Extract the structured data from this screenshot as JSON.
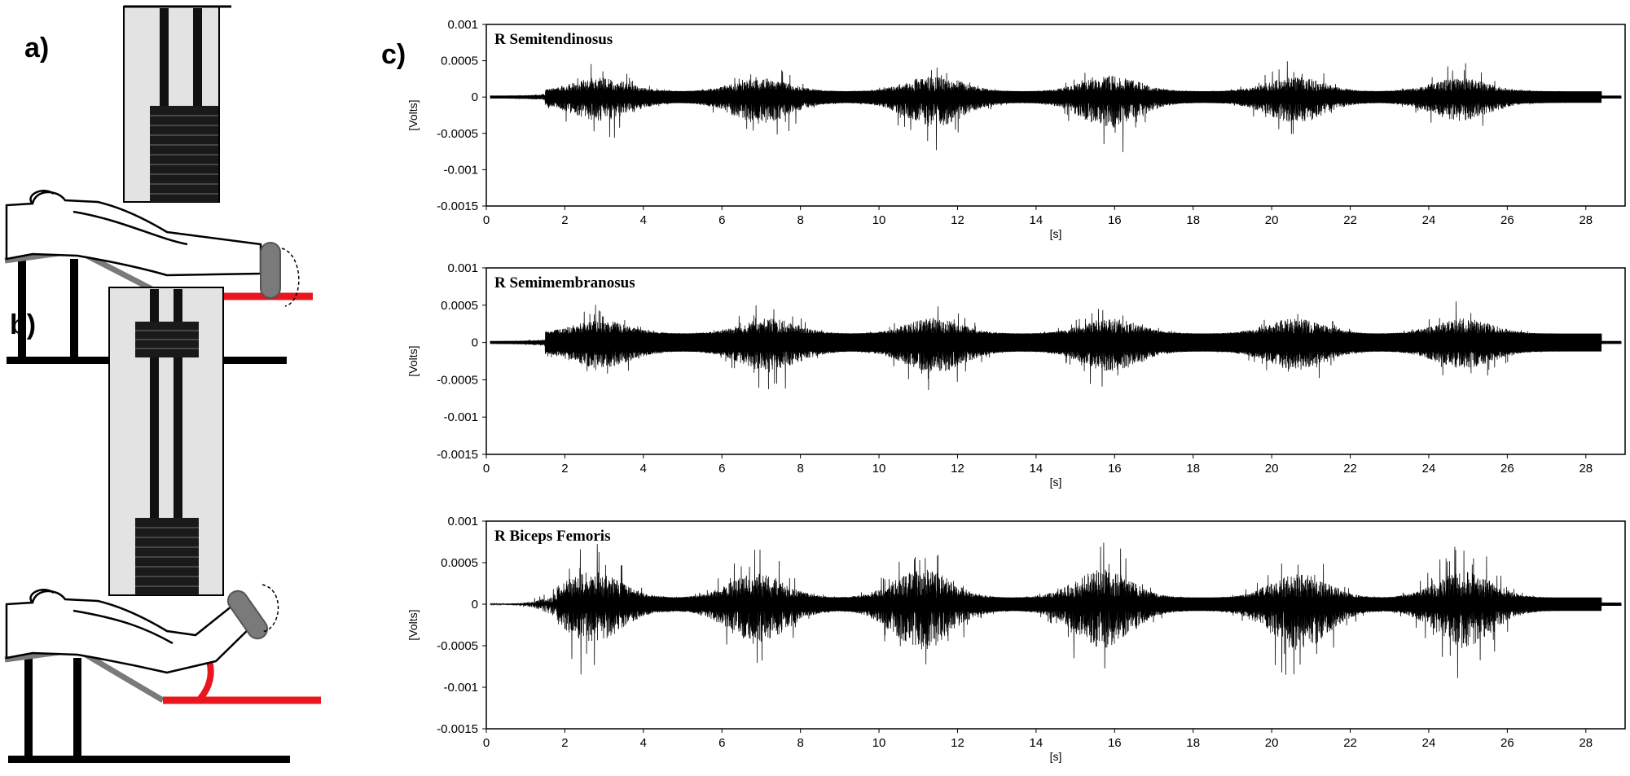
{
  "panel_labels": {
    "a": "a)",
    "b": "b)",
    "c": "c)"
  },
  "colors": {
    "signal": "#000000",
    "illustration_accent": "#e8171f",
    "frame": "#000000"
  },
  "chart_data": [
    {
      "type": "line",
      "title": "R Semitendinosus",
      "xlabel": "[s]",
      "ylabel": "[Volts]",
      "xlim": [
        0,
        29
      ],
      "ylim": [
        -0.0015,
        0.001
      ],
      "xticks": [
        0,
        2,
        4,
        6,
        8,
        10,
        12,
        14,
        16,
        18,
        20,
        22,
        24,
        26,
        28
      ],
      "yticks": [
        "0.001",
        "0.0005",
        "0",
        "-0.0005",
        "-0.001",
        "-0.0015"
      ],
      "grid": false,
      "bursts": [
        {
          "center_s": 2.9,
          "peak_pos_v": 0.00042,
          "peak_neg_v": -0.00055
        },
        {
          "center_s": 7.0,
          "peak_pos_v": 0.0004,
          "peak_neg_v": -0.00065
        },
        {
          "center_s": 11.4,
          "peak_pos_v": 0.00048,
          "peak_neg_v": -0.00075
        },
        {
          "center_s": 15.9,
          "peak_pos_v": 0.00048,
          "peak_neg_v": -0.0008
        },
        {
          "center_s": 20.6,
          "peak_pos_v": 0.00045,
          "peak_neg_v": -0.0006
        },
        {
          "center_s": 24.8,
          "peak_pos_v": 0.0004,
          "peak_neg_v": -0.00055
        }
      ]
    },
    {
      "type": "line",
      "title": "R Semimembranosus",
      "xlabel": "[s]",
      "ylabel": "[Volts]",
      "xlim": [
        0,
        29
      ],
      "ylim": [
        -0.0015,
        0.001
      ],
      "xticks": [
        0,
        2,
        4,
        6,
        8,
        10,
        12,
        14,
        16,
        18,
        20,
        22,
        24,
        26,
        28
      ],
      "yticks": [
        "0.001",
        "0.0005",
        "0",
        "-0.0005",
        "-0.001",
        "-0.0015"
      ],
      "grid": false,
      "bursts": [
        {
          "center_s": 2.9,
          "peak_pos_v": 0.0004,
          "peak_neg_v": -0.0005
        },
        {
          "center_s": 7.2,
          "peak_pos_v": 0.00045,
          "peak_neg_v": -0.0006
        },
        {
          "center_s": 11.4,
          "peak_pos_v": 0.00045,
          "peak_neg_v": -0.00065
        },
        {
          "center_s": 15.9,
          "peak_pos_v": 0.00045,
          "peak_neg_v": -0.0006
        },
        {
          "center_s": 20.6,
          "peak_pos_v": 0.00045,
          "peak_neg_v": -0.00055
        },
        {
          "center_s": 24.9,
          "peak_pos_v": 0.00045,
          "peak_neg_v": -0.0005
        }
      ]
    },
    {
      "type": "line",
      "title": "R Biceps Femoris",
      "xlabel": "[s]",
      "ylabel": "[Volts]",
      "xlim": [
        0,
        29
      ],
      "ylim": [
        -0.0015,
        0.001
      ],
      "xticks": [
        0,
        2,
        4,
        6,
        8,
        10,
        12,
        14,
        16,
        18,
        20,
        22,
        24,
        26,
        28
      ],
      "yticks": [
        "0.001",
        "0.0005",
        "0",
        "-0.0005",
        "-0.001",
        "-0.0015"
      ],
      "grid": false,
      "bursts": [
        {
          "center_s": 2.7,
          "peak_pos_v": 0.0007,
          "peak_neg_v": -0.00085
        },
        {
          "center_s": 6.9,
          "peak_pos_v": 0.00065,
          "peak_neg_v": -0.0009
        },
        {
          "center_s": 11.1,
          "peak_pos_v": 0.00078,
          "peak_neg_v": -0.00105
        },
        {
          "center_s": 15.7,
          "peak_pos_v": 0.00075,
          "peak_neg_v": -0.001
        },
        {
          "center_s": 20.7,
          "peak_pos_v": 0.00065,
          "peak_neg_v": -0.00105
        },
        {
          "center_s": 24.9,
          "peak_pos_v": 0.0007,
          "peak_neg_v": -0.00095
        }
      ]
    }
  ]
}
